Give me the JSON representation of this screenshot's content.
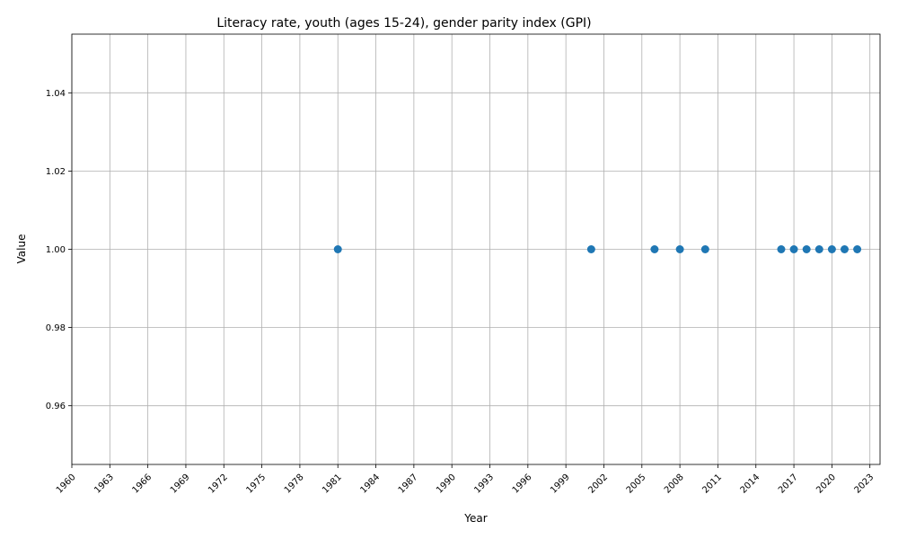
{
  "chart_data": {
    "type": "scatter",
    "title": "Literacy rate, youth (ages 15-24), gender parity index (GPI)",
    "xlabel": "Year",
    "ylabel": "Value",
    "xlim": [
      1960,
      2023.8
    ],
    "ylim": [
      0.945,
      1.055
    ],
    "x_ticks": [
      1960,
      1963,
      1966,
      1969,
      1972,
      1975,
      1978,
      1981,
      1984,
      1987,
      1990,
      1993,
      1996,
      1999,
      2002,
      2005,
      2008,
      2011,
      2014,
      2017,
      2020,
      2023
    ],
    "y_ticks": [
      "0.96",
      "0.98",
      "1.00",
      "1.02",
      "1.04"
    ],
    "grid": true,
    "marker_color": "#1f77b4",
    "x": [
      1981,
      2001,
      2006,
      2008,
      2010,
      2016,
      2017,
      2018,
      2019,
      2020,
      2021,
      2022
    ],
    "y": [
      1.0,
      1.0,
      1.0,
      1.0,
      1.0,
      1.0,
      1.0,
      1.0,
      1.0,
      1.0,
      1.0,
      1.0
    ]
  }
}
